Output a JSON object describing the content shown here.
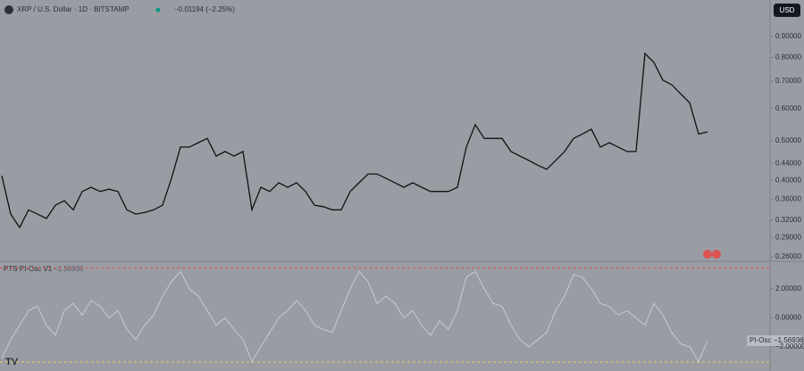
{
  "chart_data": [
    {
      "type": "line",
      "title": "XRP / U.S. Dollar · 1D · BITSTAMP",
      "change": "−0.01194 (−2.25%)",
      "currency": "USD",
      "log_scale": true,
      "color": "#111111",
      "values": [
        0.411,
        0.331,
        0.307,
        0.339,
        0.331,
        0.323,
        0.348,
        0.357,
        0.339,
        0.376,
        0.385,
        0.376,
        0.381,
        0.376,
        0.339,
        0.331,
        0.334,
        0.339,
        0.348,
        0.405,
        0.483,
        0.483,
        0.495,
        0.507,
        0.459,
        0.471,
        0.459,
        0.471,
        0.339,
        0.385,
        0.376,
        0.395,
        0.385,
        0.395,
        0.376,
        0.348,
        0.345,
        0.339,
        0.339,
        0.376,
        0.395,
        0.415,
        0.415,
        0.405,
        0.395,
        0.385,
        0.395,
        0.385,
        0.376,
        0.376,
        0.376,
        0.385,
        0.483,
        0.548,
        0.507,
        0.507,
        0.507,
        0.471,
        0.459,
        0.448,
        0.436,
        0.426,
        0.448,
        0.471,
        0.507,
        0.52,
        0.534,
        0.483,
        0.495,
        0.483,
        0.471,
        0.471,
        0.818,
        0.778,
        0.704,
        0.686,
        0.652,
        0.62,
        0.52,
        0.526
      ],
      "ylim": [
        0.255,
        1.106
      ],
      "yticks": [
        {
          "value": 0.26,
          "label": "0.26000"
        },
        {
          "value": 0.29,
          "label": "0.29000"
        },
        {
          "value": 0.32,
          "label": "0.32000"
        },
        {
          "value": 0.36,
          "label": "0.36000"
        },
        {
          "value": 0.4,
          "label": "0.40000"
        },
        {
          "value": 0.44,
          "label": "0.44000"
        },
        {
          "value": 0.5,
          "label": "0.50000"
        },
        {
          "value": 0.6,
          "label": "0.60000"
        },
        {
          "value": 0.7,
          "label": "0.70000"
        },
        {
          "value": 0.8,
          "label": "0.80000"
        },
        {
          "value": 0.9,
          "label": "0.90000"
        }
      ]
    },
    {
      "type": "line",
      "title": "PTS PI-Osc V1",
      "label": "PI-Osc",
      "last_label": "−1.56936",
      "color": "#c8cad0",
      "values": [
        -2.8,
        -1.5,
        -0.5,
        0.5,
        0.8,
        -0.5,
        -1.2,
        0.5,
        1.0,
        0.2,
        1.2,
        0.8,
        0.0,
        0.5,
        -0.8,
        -1.5,
        -0.5,
        0.2,
        1.5,
        2.5,
        3.2,
        2.0,
        1.5,
        0.5,
        -0.5,
        0.0,
        -0.8,
        -1.5,
        -3.0,
        -2.0,
        -1.0,
        0.0,
        0.5,
        1.2,
        0.5,
        -0.5,
        -0.8,
        -1.0,
        0.5,
        2.0,
        3.2,
        2.5,
        1.0,
        1.5,
        1.0,
        0.0,
        0.5,
        -0.5,
        -1.2,
        -0.2,
        -0.8,
        0.5,
        2.8,
        3.2,
        2.0,
        1.0,
        0.8,
        -0.5,
        -1.5,
        -2.0,
        -1.5,
        -1.0,
        0.5,
        1.5,
        3.0,
        2.8,
        2.0,
        1.0,
        0.8,
        0.2,
        0.5,
        0.0,
        -0.5,
        1.0,
        0.2,
        -1.0,
        -1.8,
        -2.0,
        -3.0,
        -1.56936
      ],
      "upper_level": 3.45,
      "lower_level": -3.05,
      "ylim": [
        -3.42,
        3.78
      ],
      "yticks": [
        {
          "value": 2,
          "label": "2.00000"
        },
        {
          "value": 0,
          "label": "0.00000"
        },
        {
          "value": -2,
          "label": "−2.00000"
        }
      ]
    }
  ]
}
